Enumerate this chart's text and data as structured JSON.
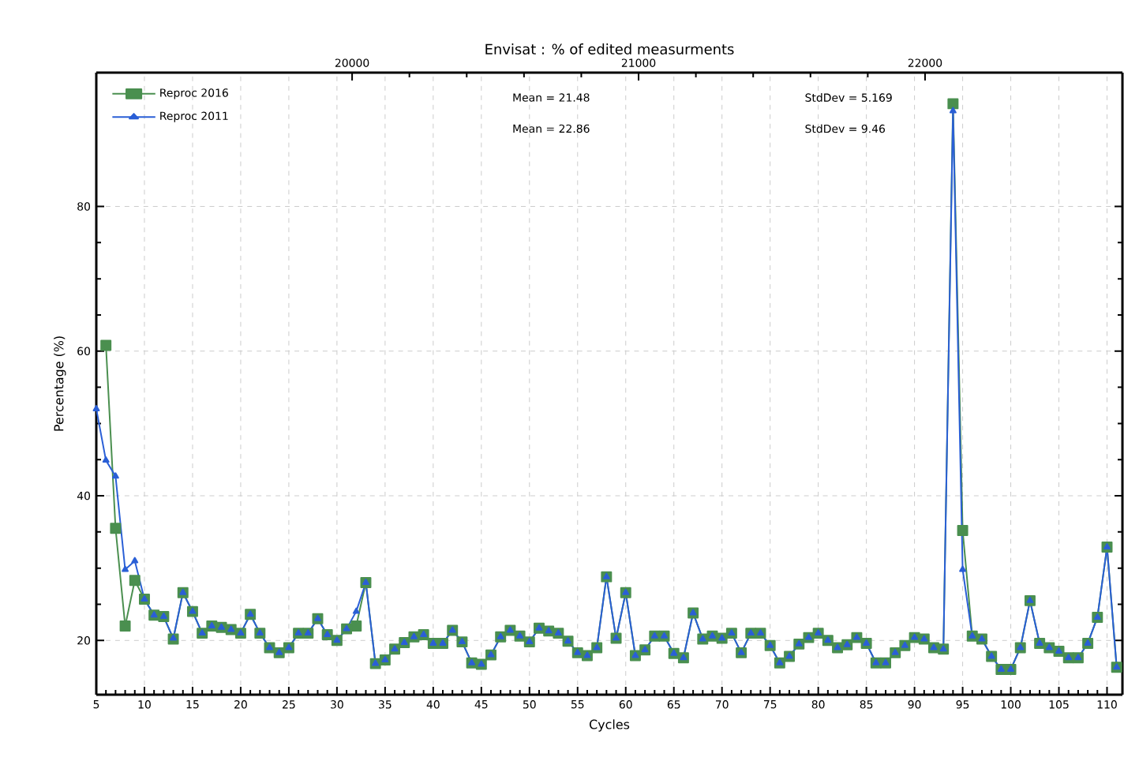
{
  "chart_data": {
    "type": "line",
    "title": "Envisat : % of edited measurments",
    "xlabel": "Cycles",
    "ylabel": "Percentage (%)",
    "xlim": [
      5,
      111.6
    ],
    "xticks": [
      5,
      10,
      15,
      20,
      25,
      30,
      35,
      40,
      45,
      50,
      55,
      60,
      65,
      70,
      75,
      80,
      85,
      90,
      95,
      100,
      105,
      110
    ],
    "ylim": [
      12.5,
      98.5
    ],
    "yticks": [
      20,
      40,
      60,
      80
    ],
    "x2lim": [
      19107,
      22689
    ],
    "x2ticks": [
      20000,
      21000,
      22000
    ],
    "grid": true,
    "legend": "top left",
    "annotations": [
      "Mean = 21.48",
      "Mean = 22.86",
      "StdDev = 5.169",
      "StdDev = 9.46"
    ],
    "series": [
      {
        "name": "Reproc 2016",
        "color": "#4a8f4f",
        "marker": "square",
        "x": [
          6,
          7,
          8,
          9,
          10,
          11,
          12,
          13,
          14,
          15,
          16,
          17,
          18,
          19,
          20,
          21,
          22,
          23,
          24,
          25,
          26,
          27,
          28,
          29,
          30,
          31,
          32,
          33,
          34,
          35,
          36,
          37,
          38,
          39,
          40,
          41,
          42,
          43,
          44,
          45,
          46,
          47,
          48,
          49,
          50,
          51,
          52,
          53,
          54,
          55,
          56,
          57,
          58,
          59,
          60,
          61,
          62,
          63,
          64,
          65,
          66,
          67,
          68,
          69,
          70,
          71,
          72,
          73,
          74,
          75,
          76,
          77,
          78,
          79,
          80,
          81,
          82,
          83,
          84,
          85,
          86,
          87,
          88,
          89,
          90,
          91,
          92,
          93,
          94,
          95,
          96,
          97,
          98,
          99,
          100,
          101,
          102,
          103,
          104,
          105,
          106,
          107,
          108,
          109,
          110,
          111
        ],
        "values": [
          60.8,
          35.5,
          22,
          28.3,
          25.7,
          23.5,
          23.3,
          20.2,
          26.6,
          24,
          21,
          22,
          21.8,
          21.5,
          21,
          23.6,
          21,
          19,
          18.3,
          19,
          21,
          21,
          23,
          20.8,
          20,
          21.6,
          22,
          28,
          16.8,
          17.3,
          18.8,
          19.7,
          20.5,
          20.8,
          19.6,
          19.6,
          21.4,
          19.8,
          16.9,
          16.7,
          18,
          20.5,
          21.4,
          20.6,
          19.8,
          21.7,
          21.3,
          21,
          19.9,
          18.3,
          17.9,
          19,
          28.8,
          20.3,
          26.6,
          17.9,
          18.7,
          20.6,
          20.6,
          18.2,
          17.6,
          23.8,
          20.2,
          20.6,
          20.3,
          21,
          18.3,
          21,
          21,
          19.3,
          16.9,
          17.8,
          19.5,
          20.4,
          21,
          20,
          19,
          19.4,
          20.4,
          19.6,
          16.9,
          16.9,
          18.3,
          19.3,
          20.4,
          20.2,
          19,
          18.8,
          94.2,
          35.2,
          20.6,
          20.2,
          17.8,
          16,
          16,
          19,
          25.5,
          19.6,
          19,
          18.5,
          17.6,
          17.6,
          19.6,
          23.2,
          32.9,
          16.3
        ]
      },
      {
        "name": "Reproc 2011",
        "color": "#2a5fd6",
        "marker": "triangle",
        "x": [
          5,
          6,
          7,
          8,
          9,
          10,
          11,
          12,
          13,
          14,
          15,
          16,
          17,
          18,
          19,
          20,
          21,
          22,
          23,
          24,
          25,
          26,
          27,
          28,
          29,
          30,
          31,
          32,
          33,
          34,
          35,
          36,
          37,
          38,
          39,
          40,
          41,
          42,
          43,
          44,
          45,
          46,
          47,
          48,
          49,
          50,
          51,
          52,
          53,
          54,
          55,
          56,
          57,
          58,
          59,
          60,
          61,
          62,
          63,
          64,
          65,
          66,
          67,
          68,
          69,
          70,
          71,
          72,
          73,
          74,
          75,
          76,
          77,
          78,
          79,
          80,
          81,
          82,
          83,
          84,
          85,
          86,
          87,
          88,
          89,
          90,
          91,
          92,
          93,
          94,
          95,
          96,
          97,
          98,
          99,
          100,
          101,
          102,
          103,
          104,
          105,
          106,
          107,
          108,
          109,
          110,
          111
        ],
        "values": [
          52,
          44.9,
          42.7,
          29.8,
          31,
          25.7,
          23.5,
          23.3,
          20.3,
          26.6,
          24,
          21,
          22,
          21.8,
          21.5,
          21,
          23.6,
          21,
          19,
          18.3,
          19,
          21,
          21,
          23,
          20.8,
          20,
          21.6,
          24,
          28,
          16.8,
          17.3,
          18.8,
          19.7,
          20.5,
          20.8,
          19.6,
          19.6,
          21.4,
          19.8,
          16.9,
          16.7,
          18,
          20.5,
          21.4,
          20.6,
          19.8,
          21.7,
          21.3,
          21,
          19.9,
          18.3,
          17.9,
          19,
          28.8,
          20.3,
          26.6,
          17.9,
          18.7,
          20.6,
          20.6,
          18.2,
          17.6,
          23.8,
          20.2,
          20.6,
          20.3,
          21,
          18.3,
          21,
          21,
          19.3,
          16.9,
          17.8,
          19.5,
          20.4,
          21,
          20,
          19,
          19.4,
          20.4,
          19.6,
          16.9,
          16.9,
          18.3,
          19.3,
          20.4,
          20.2,
          19,
          18.8,
          93.2,
          29.8,
          20.6,
          20.2,
          17.8,
          16,
          16,
          19,
          25.5,
          19.6,
          19,
          18.5,
          17.6,
          17.6,
          19.6,
          23.2,
          32.9,
          16.3
        ]
      }
    ]
  }
}
